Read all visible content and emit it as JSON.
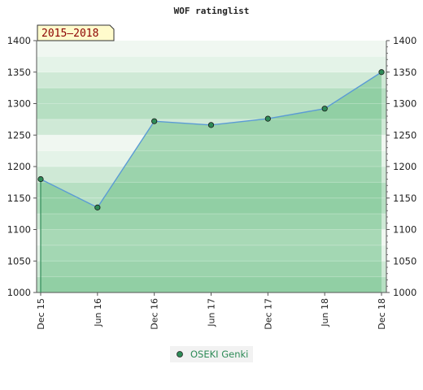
{
  "chart_data": {
    "type": "area",
    "title": "WOF ratinglist",
    "period_label": "2015–2018",
    "x": [
      "Dec 15",
      "Jun 16",
      "Dec 16",
      "Jun 17",
      "Dec 17",
      "Jun 18",
      "Dec 18"
    ],
    "series": [
      {
        "name": "OSEKI Genki",
        "values": [
          1180,
          1135,
          1272,
          1266,
          1276,
          1292,
          1350
        ]
      }
    ],
    "ylim": [
      1000,
      1400
    ],
    "yticks": [
      "1000",
      "1050",
      "1100",
      "1150",
      "1200",
      "1250",
      "1300",
      "1350",
      "1400"
    ],
    "grid": true,
    "right_axis": true,
    "legend_position": "bottom-center",
    "colors": {
      "line": "#5b9bd5",
      "marker": "#2e8b57",
      "fill": "#78c490",
      "band_dark": "#b6dfc2",
      "band_light": "#f0f7f1",
      "badge_bg": "#fffbcc",
      "badge_text": "#8b0000",
      "legend_text": "#2e8b57"
    }
  }
}
